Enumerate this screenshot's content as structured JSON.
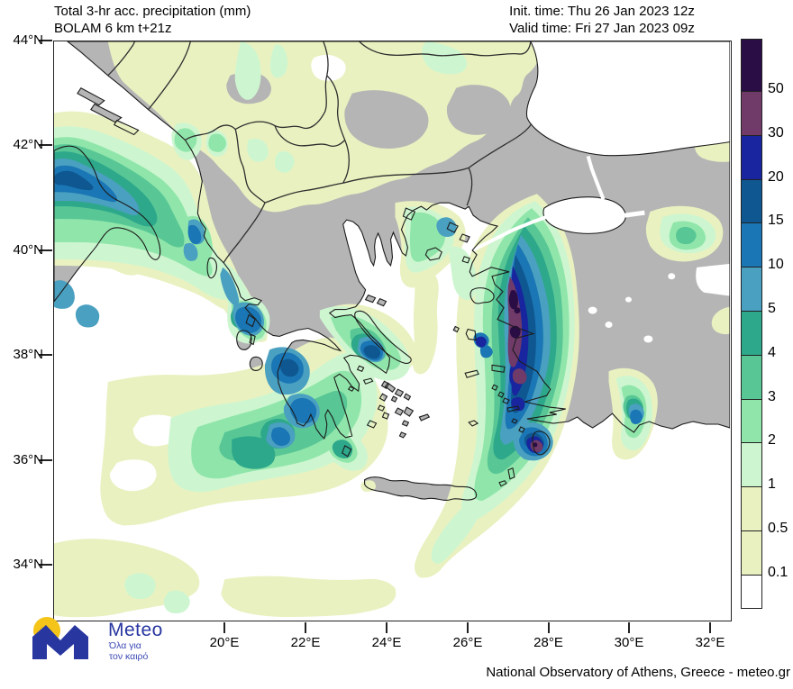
{
  "header": {
    "title_line1": "Total 3-hr acc. precipitation (mm)",
    "title_line2": "BOLAM 6 km t+21z",
    "init_time": "Init. time: Thu 26 Jan 2023 12z",
    "valid_time": "Valid time: Fri 27 Jan 2023 09z"
  },
  "axes": {
    "lat_labels": [
      "44°N",
      "42°N",
      "40°N",
      "38°N",
      "36°N",
      "34°N"
    ],
    "lon_labels": [
      "20°E",
      "22°E",
      "24°E",
      "26°E",
      "28°E",
      "30°E",
      "32°E"
    ]
  },
  "colorbar": {
    "tick_labels": [
      "50",
      "30",
      "20",
      "15",
      "10",
      "5",
      "4",
      "3",
      "2",
      "1",
      "0.5",
      "0.1"
    ],
    "colors_top_to_bottom": [
      "#2a0d45",
      "#703b68",
      "#18259e",
      "#0f5791",
      "#1a76b4",
      "#4aa0c0",
      "#2ea88b",
      "#58c795",
      "#90e6aa",
      "#cdf6d0",
      "#e9f1c0",
      "#e9f1c0",
      "#ffffff"
    ],
    "unit": "mm"
  },
  "map": {
    "sea_color": "#ffffff",
    "land_color": "#b5b5b5",
    "coast_color": "#1c1c1c",
    "border_color": "#2e2e2e"
  },
  "footer": {
    "logo_name": "Meteo",
    "logo_tagline_line1": "Όλα για",
    "logo_tagline_line2": "τον καιρό",
    "logo_blue": "#2836a0",
    "logo_yellow": "#f4c418",
    "attribution": "National Observatory of Athens, Greece - meteo.gr"
  }
}
